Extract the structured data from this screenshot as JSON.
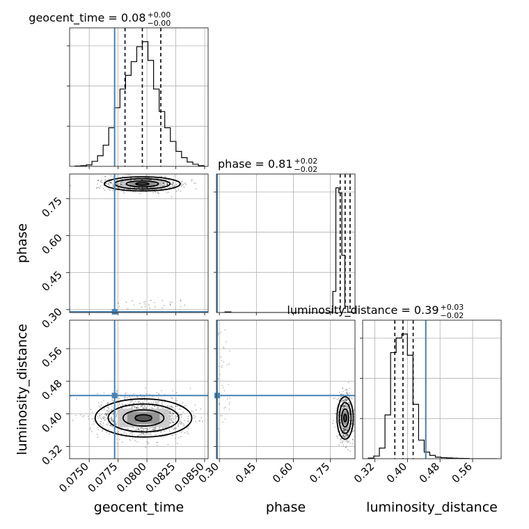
{
  "chart_data": {
    "type": "corner",
    "truth_color": "#4682b4",
    "parameters": [
      {
        "name": "geocent_time",
        "axis_label": "geocent_time",
        "title_prefix": "geocent_time = 0.08",
        "title_plus": "+0.00",
        "title_minus": "−0.00",
        "range": [
          0.0733,
          0.0853
        ],
        "ticks": [
          {
            "value": 0.075,
            "label": "0.0750"
          },
          {
            "value": 0.0775,
            "label": "0.0775"
          },
          {
            "value": 0.08,
            "label": "0.0800"
          },
          {
            "value": 0.0825,
            "label": "0.0825"
          },
          {
            "value": 0.085,
            "label": "0.0850"
          }
        ],
        "truth": 0.0772,
        "quantiles": [
          0.0781,
          0.0796,
          0.0812
        ],
        "histogram": [
          0.3,
          0.6,
          1.2,
          4,
          8.5,
          17,
          31,
          47,
          62,
          73,
          84,
          96,
          100,
          85,
          62,
          44,
          31,
          20,
          12,
          7,
          3.5,
          1.7,
          0.6
        ]
      },
      {
        "name": "phase",
        "axis_label": "phase",
        "title_prefix": "phase = 0.81",
        "title_plus": "+0.02",
        "title_minus": "−0.02",
        "range": [
          0.288,
          0.85
        ],
        "ticks": [
          {
            "value": 0.3,
            "label": "0.30"
          },
          {
            "value": 0.45,
            "label": "0.45"
          },
          {
            "value": 0.6,
            "label": "0.60"
          },
          {
            "value": 0.75,
            "label": "0.75"
          }
        ],
        "truth": 0.291,
        "quantiles": [
          0.79,
          0.81,
          0.83
        ],
        "histogram": [
          0,
          0.5,
          0.5,
          0,
          0,
          0,
          0,
          0,
          0,
          0,
          0,
          0,
          0,
          0,
          0,
          0,
          0,
          0,
          0,
          0,
          0,
          0,
          0,
          0,
          0,
          0,
          0,
          0,
          0,
          0,
          0,
          0,
          0,
          0,
          0,
          0,
          0.4,
          17,
          100,
          96,
          46,
          5,
          0.4
        ]
      },
      {
        "name": "luminosity_distance",
        "axis_label": "luminosity_distance",
        "title_prefix": "luminosity_distance = 0.39",
        "title_plus": "+0.03",
        "title_minus": "−0.02",
        "range": [
          0.29,
          0.63
        ],
        "ticks": [
          {
            "value": 0.32,
            "label": "0.32"
          },
          {
            "value": 0.4,
            "label": "0.40"
          },
          {
            "value": 0.48,
            "label": "0.48"
          },
          {
            "value": 0.56,
            "label": "0.56"
          }
        ],
        "truth": 0.445,
        "quantiles": [
          0.369,
          0.389,
          0.414
        ],
        "histogram": [
          0.5,
          2,
          8,
          33,
          80,
          91,
          94,
          78,
          41,
          14,
          5,
          2.5,
          1.2,
          0.8,
          0.6,
          0.4,
          0.3,
          0.2,
          0,
          0,
          0,
          0,
          0
        ]
      }
    ],
    "joint_centers": {
      "geocent_time_phase": {
        "x": 0.0796,
        "y": 0.81
      },
      "geocent_time_luminosity_distance": {
        "x": 0.0797,
        "y": 0.39
      },
      "phase_luminosity_distance": {
        "x": 0.81,
        "y": 0.39
      }
    },
    "grid": true
  }
}
